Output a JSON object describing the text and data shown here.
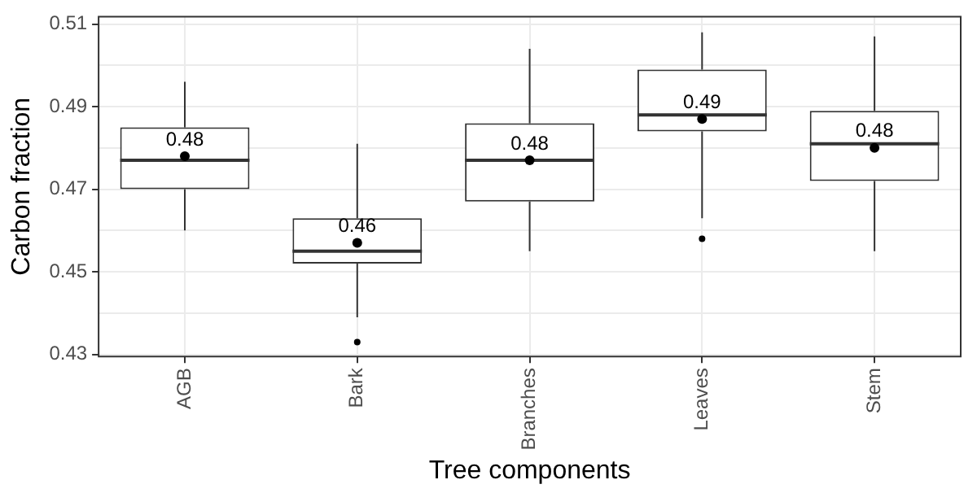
{
  "chart_data": {
    "type": "box",
    "xlabel": "Tree components",
    "ylabel": "Carbon fraction",
    "categories": [
      "AGB",
      "Bark",
      "Branches",
      "Leaves",
      "Stem"
    ],
    "boxes": [
      {
        "low": 0.46,
        "q1": 0.47,
        "median": 0.477,
        "q3": 0.485,
        "high": 0.496,
        "mean": 0.478
      },
      {
        "low": 0.439,
        "q1": 0.452,
        "median": 0.455,
        "q3": 0.463,
        "high": 0.481,
        "mean": 0.457,
        "outliers": [
          0.433
        ]
      },
      {
        "low": 0.455,
        "q1": 0.467,
        "median": 0.477,
        "q3": 0.486,
        "high": 0.504,
        "mean": 0.477
      },
      {
        "low": 0.463,
        "q1": 0.484,
        "median": 0.488,
        "q3": 0.499,
        "high": 0.508,
        "mean": 0.487,
        "outliers": [
          0.458
        ]
      },
      {
        "low": 0.455,
        "q1": 0.472,
        "median": 0.481,
        "q3": 0.489,
        "high": 0.507,
        "mean": 0.48
      }
    ],
    "ylim": [
      0.4295,
      0.5118
    ],
    "yticks": [
      0.43,
      {
        "value": 0.44,
        "label": null
      },
      0.45,
      {
        "value": 0.46,
        "label": null
      },
      0.47,
      {
        "value": 0.48,
        "label": null
      },
      0.49,
      {
        "value": 0.5,
        "label": null
      },
      0.51
    ],
    "grid": true,
    "annotations": [
      {
        "text": "0.48",
        "x": "AGB",
        "y": 0.478
      },
      {
        "text": "0.46",
        "x": "Bark",
        "y": 0.457
      },
      {
        "text": "0.48",
        "x": "Branches",
        "y": 0.477
      },
      {
        "text": "0.49",
        "x": "Leaves",
        "y": 0.487
      },
      {
        "text": "0.48",
        "x": "Stem",
        "y": 0.48
      }
    ]
  }
}
